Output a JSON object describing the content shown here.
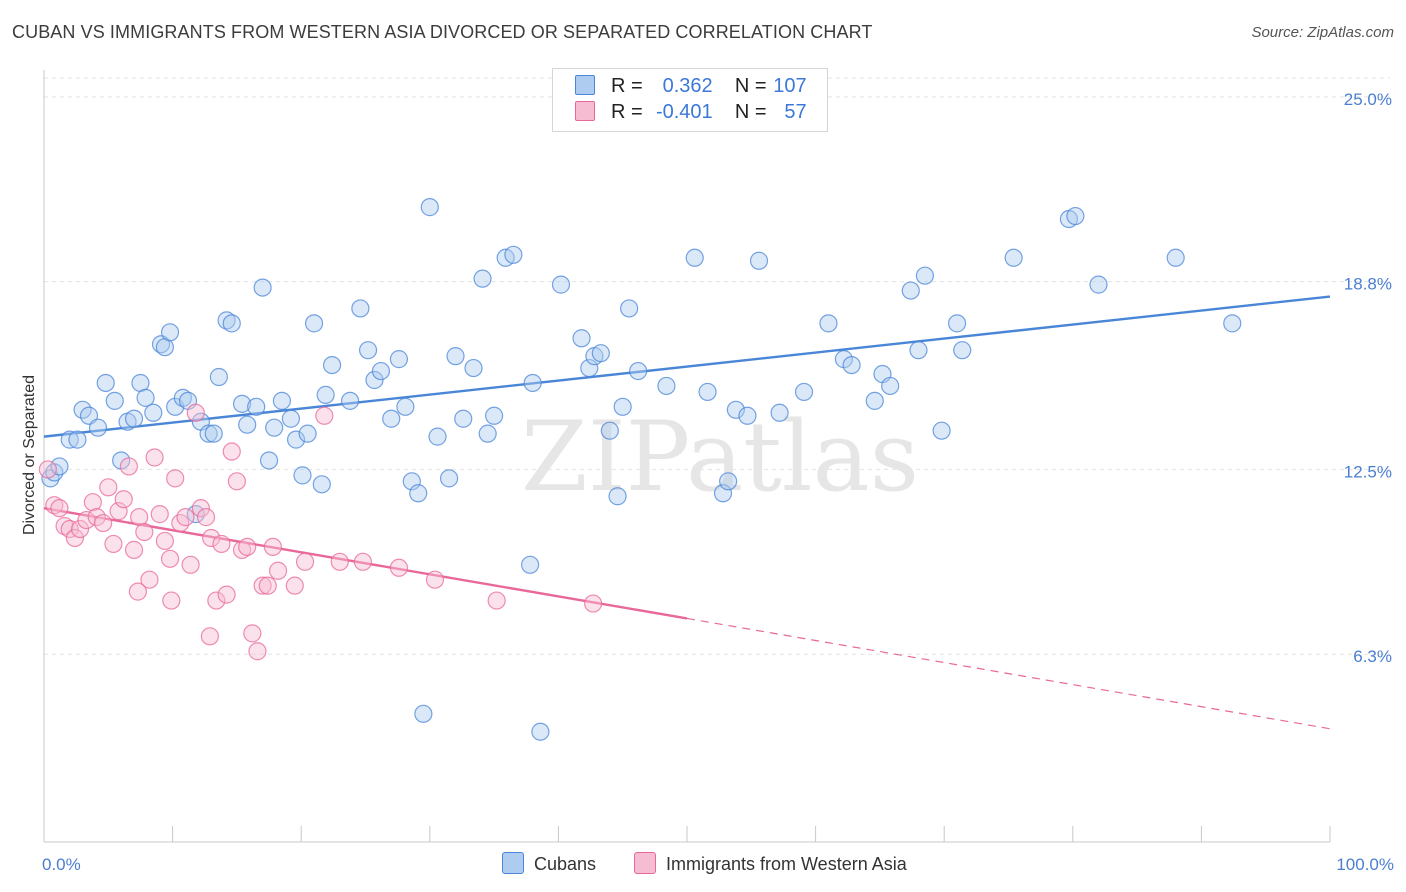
{
  "title": "CUBAN VS IMMIGRANTS FROM WESTERN ASIA DIVORCED OR SEPARATED CORRELATION CHART",
  "source": "Source: ZipAtlas.com",
  "watermark": "ZIPatlas",
  "colors": {
    "blue": "#4a86d8",
    "blue_fill": "#aecbf0",
    "pink": "#e8689a",
    "pink_fill": "#f6bdd2",
    "tick": "#4a7fd0"
  },
  "legend": {
    "rows": [
      {
        "r_label": "R =",
        "r_value": "0.362",
        "n_label": "N =",
        "n_value": "107"
      },
      {
        "r_label": "R =",
        "r_value": "-0.401",
        "n_label": "N =",
        "n_value": "57"
      }
    ]
  },
  "chart_data": {
    "type": "scatter",
    "title": "CUBAN VS IMMIGRANTS FROM WESTERN ASIA DIVORCED OR SEPARATED CORRELATION CHART",
    "xlabel": "",
    "ylabel": "Divorced or Separated",
    "xlim": [
      0,
      100
    ],
    "ylim": [
      0,
      25.9
    ],
    "x_tick_labels": [
      "0.0%",
      "100.0%"
    ],
    "y_ticks": [
      6.3,
      12.5,
      18.8,
      25.0
    ],
    "y_tick_labels": [
      "6.3%",
      "12.5%",
      "18.8%",
      "25.0%"
    ],
    "grid": "horizontal dashed",
    "legend_position": "top-center",
    "series": [
      {
        "name": "Cubans",
        "color": "#4a86d8",
        "trend": {
          "x0": 0,
          "y0": 13.6,
          "x1": 100,
          "y1": 18.3,
          "solid_until": 100
        },
        "points": [
          [
            0.5,
            12.2
          ],
          [
            0.8,
            12.4
          ],
          [
            1.2,
            12.6
          ],
          [
            2.0,
            13.5
          ],
          [
            2.6,
            13.5
          ],
          [
            3.0,
            14.5
          ],
          [
            3.5,
            14.3
          ],
          [
            4.2,
            13.9
          ],
          [
            4.8,
            15.4
          ],
          [
            5.5,
            14.8
          ],
          [
            6.0,
            12.8
          ],
          [
            6.5,
            14.1
          ],
          [
            7.0,
            14.2
          ],
          [
            7.5,
            15.4
          ],
          [
            7.9,
            14.9
          ],
          [
            8.5,
            14.4
          ],
          [
            9.1,
            16.7
          ],
          [
            9.4,
            16.6
          ],
          [
            9.8,
            17.1
          ],
          [
            10.2,
            14.6
          ],
          [
            10.8,
            14.9
          ],
          [
            11.2,
            14.8
          ],
          [
            11.8,
            11.0
          ],
          [
            12.2,
            14.1
          ],
          [
            12.8,
            13.7
          ],
          [
            13.2,
            13.7
          ],
          [
            13.6,
            15.6
          ],
          [
            14.2,
            17.5
          ],
          [
            14.6,
            17.4
          ],
          [
            15.4,
            14.7
          ],
          [
            15.8,
            14.0
          ],
          [
            16.5,
            14.6
          ],
          [
            17.0,
            18.6
          ],
          [
            17.5,
            12.8
          ],
          [
            17.9,
            13.9
          ],
          [
            18.5,
            14.8
          ],
          [
            19.2,
            14.2
          ],
          [
            19.6,
            13.5
          ],
          [
            20.1,
            12.3
          ],
          [
            20.5,
            13.7
          ],
          [
            21.0,
            17.4
          ],
          [
            21.6,
            12.0
          ],
          [
            21.9,
            15.0
          ],
          [
            22.4,
            16.0
          ],
          [
            23.8,
            14.8
          ],
          [
            24.6,
            17.9
          ],
          [
            25.2,
            16.5
          ],
          [
            25.7,
            15.5
          ],
          [
            26.2,
            15.8
          ],
          [
            27.0,
            14.2
          ],
          [
            27.6,
            16.2
          ],
          [
            28.1,
            14.6
          ],
          [
            28.6,
            12.1
          ],
          [
            29.1,
            11.7
          ],
          [
            29.5,
            4.3
          ],
          [
            30.0,
            21.3
          ],
          [
            30.6,
            13.6
          ],
          [
            31.5,
            12.2
          ],
          [
            32.0,
            16.3
          ],
          [
            32.6,
            14.2
          ],
          [
            33.4,
            15.9
          ],
          [
            34.1,
            18.9
          ],
          [
            34.5,
            13.7
          ],
          [
            35.0,
            14.3
          ],
          [
            35.9,
            19.6
          ],
          [
            36.5,
            19.7
          ],
          [
            37.8,
            9.3
          ],
          [
            38.0,
            15.4
          ],
          [
            38.6,
            3.7
          ],
          [
            40.2,
            18.7
          ],
          [
            41.8,
            16.9
          ],
          [
            42.4,
            15.9
          ],
          [
            42.8,
            16.3
          ],
          [
            43.3,
            16.4
          ],
          [
            44.0,
            13.8
          ],
          [
            44.6,
            11.6
          ],
          [
            45.0,
            14.6
          ],
          [
            45.5,
            17.9
          ],
          [
            46.2,
            15.8
          ],
          [
            48.4,
            15.3
          ],
          [
            50.6,
            19.6
          ],
          [
            51.6,
            15.1
          ],
          [
            52.8,
            11.7
          ],
          [
            53.2,
            12.1
          ],
          [
            53.8,
            14.5
          ],
          [
            54.7,
            14.3
          ],
          [
            55.6,
            19.5
          ],
          [
            57.2,
            14.4
          ],
          [
            59.1,
            15.1
          ],
          [
            61.0,
            17.4
          ],
          [
            62.2,
            16.2
          ],
          [
            62.8,
            16.0
          ],
          [
            64.6,
            14.8
          ],
          [
            65.2,
            15.7
          ],
          [
            65.8,
            15.3
          ],
          [
            67.4,
            18.5
          ],
          [
            68.0,
            16.5
          ],
          [
            68.5,
            19.0
          ],
          [
            69.8,
            13.8
          ],
          [
            71.0,
            17.4
          ],
          [
            71.4,
            16.5
          ],
          [
            75.4,
            19.6
          ],
          [
            79.7,
            20.9
          ],
          [
            80.2,
            21.0
          ],
          [
            82.0,
            18.7
          ],
          [
            88.0,
            19.6
          ],
          [
            92.4,
            17.4
          ]
        ]
      },
      {
        "name": "Immigrants from Western Asia",
        "color": "#e8689a",
        "trend": {
          "x0": 0,
          "y0": 11.2,
          "x1": 100,
          "y1": 3.8,
          "solid_until": 50
        },
        "points": [
          [
            0.3,
            12.5
          ],
          [
            0.8,
            11.3
          ],
          [
            1.2,
            11.2
          ],
          [
            1.6,
            10.6
          ],
          [
            2.0,
            10.5
          ],
          [
            2.4,
            10.2
          ],
          [
            2.8,
            10.5
          ],
          [
            3.3,
            10.8
          ],
          [
            3.8,
            11.4
          ],
          [
            4.1,
            10.9
          ],
          [
            4.6,
            10.7
          ],
          [
            5.0,
            11.9
          ],
          [
            5.4,
            10.0
          ],
          [
            5.8,
            11.1
          ],
          [
            6.2,
            11.5
          ],
          [
            6.6,
            12.6
          ],
          [
            7.0,
            9.8
          ],
          [
            7.4,
            10.9
          ],
          [
            7.8,
            10.4
          ],
          [
            8.2,
            8.8
          ],
          [
            8.6,
            12.9
          ],
          [
            9.0,
            11.0
          ],
          [
            9.4,
            10.1
          ],
          [
            9.8,
            9.5
          ],
          [
            10.2,
            12.2
          ],
          [
            10.6,
            10.7
          ],
          [
            11.0,
            10.9
          ],
          [
            11.4,
            9.3
          ],
          [
            11.8,
            14.4
          ],
          [
            12.2,
            11.2
          ],
          [
            12.6,
            10.9
          ],
          [
            13.0,
            10.2
          ],
          [
            13.4,
            8.1
          ],
          [
            13.8,
            10.0
          ],
          [
            14.2,
            8.3
          ],
          [
            14.6,
            13.1
          ],
          [
            15.0,
            12.1
          ],
          [
            15.4,
            9.8
          ],
          [
            15.8,
            9.9
          ],
          [
            16.2,
            7.0
          ],
          [
            16.6,
            6.4
          ],
          [
            17.0,
            8.6
          ],
          [
            17.4,
            8.6
          ],
          [
            17.8,
            9.9
          ],
          [
            18.2,
            9.1
          ],
          [
            19.5,
            8.6
          ],
          [
            20.3,
            9.4
          ],
          [
            21.8,
            14.3
          ],
          [
            23.0,
            9.4
          ],
          [
            24.8,
            9.4
          ],
          [
            27.6,
            9.2
          ],
          [
            30.4,
            8.8
          ],
          [
            35.2,
            8.1
          ],
          [
            42.7,
            8.0
          ],
          [
            7.3,
            8.4
          ],
          [
            9.9,
            8.1
          ],
          [
            12.9,
            6.9
          ]
        ]
      }
    ]
  }
}
